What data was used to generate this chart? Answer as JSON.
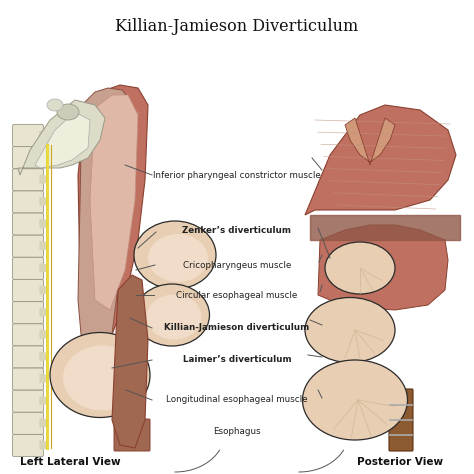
{
  "title": "Killian-Jamieson Diverticulum",
  "title_fontsize": 11.5,
  "left_label": "Left Lateral View",
  "right_label": "Posterior View",
  "bg_color": "#ffffff",
  "skin_peach": "#ddb99a",
  "skin_light": "#e8ceB2",
  "skin_lighter": "#f0dcc8",
  "muscle_red": "#c07060",
  "muscle_med": "#b86858",
  "muscle_dark": "#8a4030",
  "bone_white": "#e8e4d0",
  "bone_cream": "#d8d4b8",
  "spine_gray": "#c8c4b0",
  "yellow_nerve": "#e8d840",
  "line_dark": "#2a2a2a",
  "line_med": "#555555",
  "annot_color": "#222222"
}
